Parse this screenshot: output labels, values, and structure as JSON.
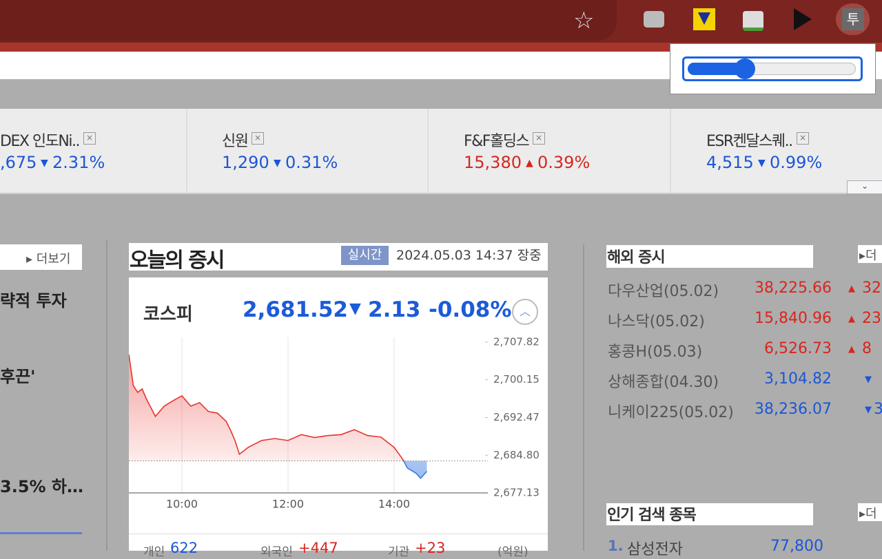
{
  "browser": {
    "extension_label": "투"
  },
  "tickers": [
    {
      "name": "DEX 인도Ni..",
      "price": ",675",
      "change": "2.31%",
      "direction": "down"
    },
    {
      "name": "신원",
      "price": "1,290",
      "change": "0.31%",
      "direction": "down"
    },
    {
      "name": "F&F홀딩스",
      "price": "15,380",
      "change": "0.39%",
      "direction": "up"
    },
    {
      "name": "ESR켄달스퀘..",
      "price": "4,515",
      "change": "0.99%",
      "direction": "down"
    }
  ],
  "left_column": {
    "more": "더보기",
    "headlines": [
      "략적 투자",
      "후끈'",
      "3.5% 하…"
    ]
  },
  "market": {
    "title": "오늘의 증시",
    "badge": "실시간",
    "datetime": "2024.05.03 14:37 장중",
    "index_name": "코스피",
    "index_value": "2,681.52",
    "change": "2.13",
    "change_pct": "-0.08%",
    "direction": "down",
    "investors": [
      {
        "label": "개인",
        "value": "622",
        "direction": "down"
      },
      {
        "label": "외국인",
        "value": "+447",
        "direction": "up"
      },
      {
        "label": "기관",
        "value": "+23",
        "direction": "up"
      },
      {
        "label": "(억원)"
      }
    ],
    "chart": {
      "type": "line",
      "x": [
        0,
        5,
        10,
        15,
        20,
        30,
        40,
        50,
        60,
        70,
        80,
        90,
        100,
        110,
        115,
        120,
        125,
        135,
        150,
        165,
        180,
        195,
        210,
        225,
        240,
        255,
        270,
        285,
        300,
        310,
        315,
        325,
        330,
        337
      ],
      "values": [
        2705.3,
        2699.0,
        2697.6,
        2698.3,
        2696.2,
        2692.7,
        2694.8,
        2695.9,
        2696.9,
        2694.8,
        2695.5,
        2693.7,
        2693.4,
        2691.7,
        2689.9,
        2687.8,
        2685.0,
        2686.4,
        2687.8,
        2688.2,
        2687.8,
        2689.0,
        2688.4,
        2688.8,
        2689.0,
        2690.0,
        2688.8,
        2688.5,
        2686.4,
        2683.9,
        2682.2,
        2681.1,
        2680.1,
        2681.52
      ],
      "xlim": [
        0,
        406
      ],
      "xticks": [
        {
          "value": 60,
          "label": "10:00"
        },
        {
          "value": 180,
          "label": "12:00"
        },
        {
          "value": 300,
          "label": "14:00"
        }
      ],
      "ylim": [
        2677.13,
        2707.82
      ],
      "yticks": [
        {
          "value": 2677.13,
          "label": "2,677.13"
        },
        {
          "value": 2684.8,
          "label": "2,684.80"
        },
        {
          "value": 2692.47,
          "label": "2,692.47"
        },
        {
          "value": 2700.15,
          "label": "2,700.15"
        },
        {
          "value": 2707.82,
          "label": "2,707.82"
        }
      ],
      "reference_line": 2683.65,
      "color_up": "#e8332c",
      "color_down": "#3a7be0",
      "grid": "x"
    }
  },
  "overseas": {
    "title": "해외 증시",
    "more": "더",
    "rows": [
      {
        "name": "다우산업(05.02)",
        "value": "38,225.66",
        "change": "32",
        "direction": "up"
      },
      {
        "name": "나스닥(05.02)",
        "value": "15,840.96",
        "change": "23",
        "direction": "up"
      },
      {
        "name": "홍콩H(05.03)",
        "value": "6,526.73",
        "change": "8",
        "direction": "up"
      },
      {
        "name": "상해종합(04.30)",
        "value": "3,104.82",
        "direction": "down"
      },
      {
        "name": "니케이225(05.02)",
        "value": "38,236.07",
        "change": "3",
        "direction": "down"
      }
    ]
  },
  "popular": {
    "title": "인기 검색 종목",
    "more": "더",
    "rows": [
      {
        "rank": "1.",
        "name": "삼성전자",
        "price": "77,800",
        "direction": "down"
      }
    ]
  }
}
